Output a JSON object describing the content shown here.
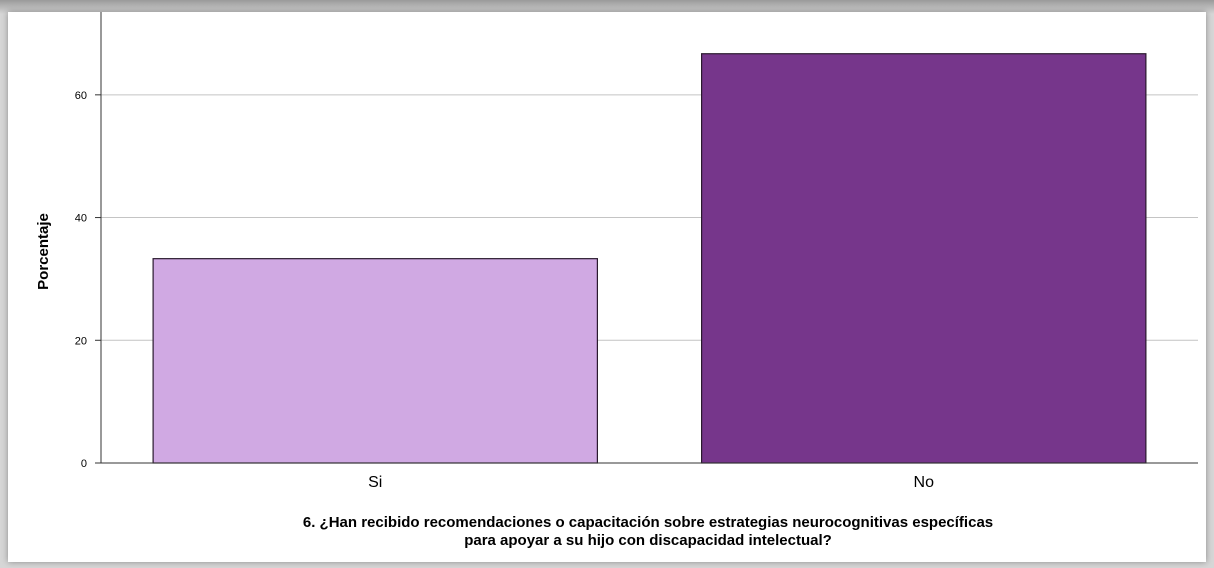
{
  "chart_data": {
    "type": "bar",
    "categories": [
      "Si",
      "No"
    ],
    "values": [
      33.3,
      66.7
    ],
    "colors": [
      "#d0a9e3",
      "#76368b"
    ],
    "ylabel": "Porcentaje",
    "xlabel_lines": [
      "6. ¿Han recibido recomendaciones o capacitación sobre estrategias neurocognitivas específicas",
      "para apoyar a su hijo con discapacidad intelectual?"
    ],
    "ylim": [
      0,
      73.5
    ],
    "yticks": [
      0,
      20,
      40,
      60
    ],
    "grid": true
  }
}
